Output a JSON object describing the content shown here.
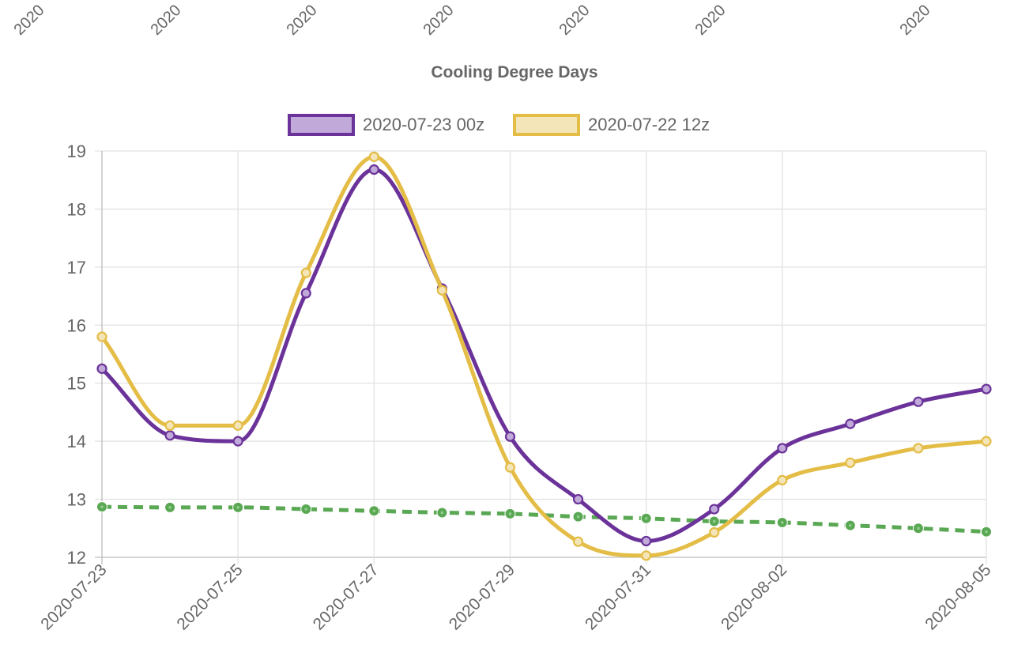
{
  "chart_data": {
    "type": "line",
    "title": "Cooling Degree Days",
    "x": [
      "2020-07-23",
      "2020-07-24",
      "2020-07-25",
      "2020-07-26",
      "2020-07-27",
      "2020-07-28",
      "2020-07-29",
      "2020-07-30",
      "2020-07-31",
      "2020-08-01",
      "2020-08-02",
      "2020-08-03",
      "2020-08-04",
      "2020-08-05"
    ],
    "x_tick_labels": [
      "2020-07-23",
      "2020-07-25",
      "2020-07-27",
      "2020-07-29",
      "2020-07-31",
      "2020-08-02",
      "2020-08-05"
    ],
    "top_chart_cropped_tick_labels": [
      "2020",
      "2020",
      "2020",
      "2020",
      "2020",
      "2020",
      "2020"
    ],
    "y_ticks": [
      12,
      13,
      14,
      15,
      16,
      17,
      18,
      19
    ],
    "ylim": [
      12,
      19
    ],
    "grid": true,
    "legend_position": "top",
    "series": [
      {
        "name": "2020-07-23 00z",
        "color": "#6b3399",
        "fill": "#c1a9d9",
        "values": [
          15.25,
          14.1,
          14.0,
          16.55,
          18.68,
          16.63,
          14.08,
          13.0,
          12.28,
          12.83,
          13.88,
          14.3,
          14.68,
          14.9
        ]
      },
      {
        "name": "2020-07-22 12z",
        "color": "#e4bd47",
        "fill": "#f3e5b8",
        "values": [
          15.8,
          14.27,
          14.27,
          16.9,
          18.9,
          16.6,
          13.55,
          12.27,
          12.03,
          12.43,
          13.33,
          13.63,
          13.88,
          14.0
        ]
      },
      {
        "name": "",
        "color": "#5aa854",
        "dashed": true,
        "values": [
          12.87,
          12.86,
          12.86,
          12.83,
          12.8,
          12.77,
          12.75,
          12.7,
          12.67,
          12.62,
          12.6,
          12.55,
          12.5,
          12.44
        ]
      }
    ]
  }
}
